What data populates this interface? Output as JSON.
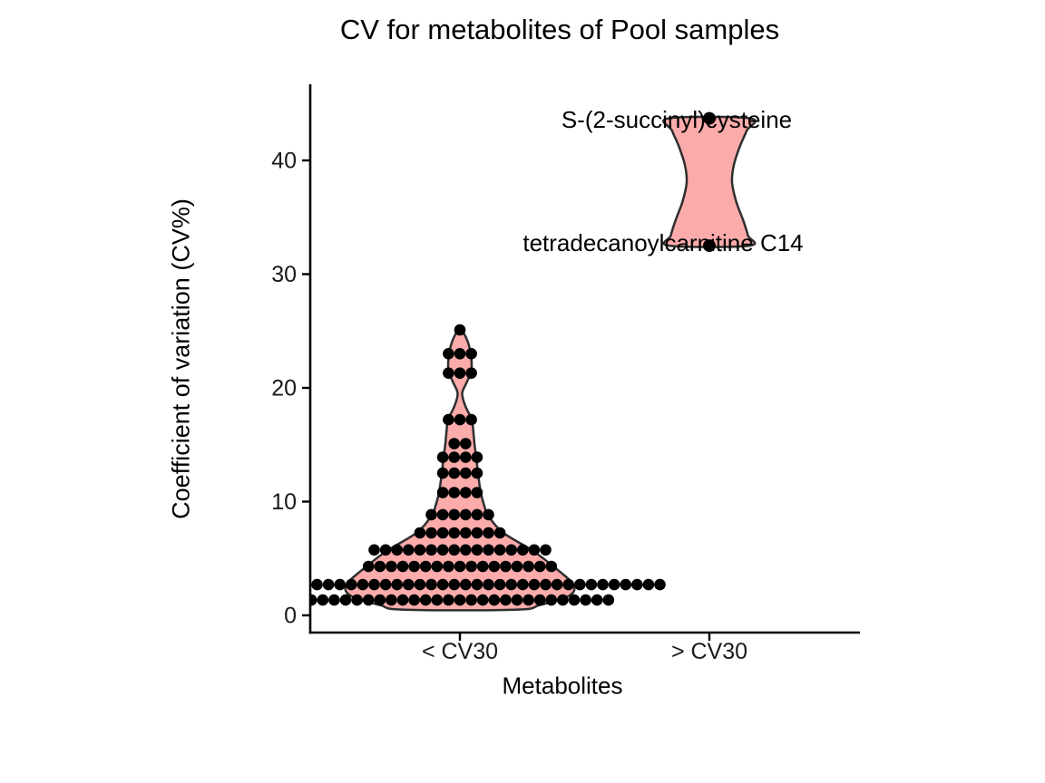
{
  "chart_data": {
    "type": "violin",
    "title": "CV for metabolites of Pool samples",
    "xlabel": "Metabolites",
    "ylabel": "Coefficient of variation (CV%)",
    "categories": [
      "< CV30",
      "> CV30"
    ],
    "yticks": [
      0,
      10,
      20,
      30,
      40
    ],
    "ylim": [
      -1.5,
      46.5
    ],
    "grid": "off",
    "legend": "none",
    "colors": {
      "background": "#FFFFFF",
      "violin_fill": "#FCABAB",
      "violin_stroke": "#2E2E2E",
      "dot": "#000000",
      "axis": "#000000",
      "tick_label": "#1A1A1A",
      "annotation_text": "#000000"
    },
    "groups": [
      {
        "category": "< CV30",
        "dot_rows": [
          {
            "cv": 25.1,
            "count": 1
          },
          {
            "cv": 23.0,
            "count": 3
          },
          {
            "cv": 21.3,
            "count": 3
          },
          {
            "cv": 17.2,
            "count": 3
          },
          {
            "cv": 15.1,
            "count": 2
          },
          {
            "cv": 13.9,
            "count": 4
          },
          {
            "cv": 12.5,
            "count": 4
          },
          {
            "cv": 10.8,
            "count": 4
          },
          {
            "cv": 8.85,
            "count": 6
          },
          {
            "cv": 7.25,
            "count": 8
          },
          {
            "cv": 5.75,
            "count": 16
          },
          {
            "cv": 4.3,
            "count": 17
          },
          {
            "cv": 2.7,
            "count": 36
          },
          {
            "cv": 1.35,
            "count": 27
          }
        ],
        "violin_outline": [
          [
            25.2,
            1
          ],
          [
            24.2,
            8
          ],
          [
            23.0,
            12
          ],
          [
            22.0,
            13
          ],
          [
            21.3,
            12
          ],
          [
            20.4,
            7
          ],
          [
            19.5,
            2.5
          ],
          [
            18.4,
            6
          ],
          [
            17.2,
            13
          ],
          [
            16.0,
            15
          ],
          [
            15.1,
            16
          ],
          [
            13.9,
            18
          ],
          [
            12.5,
            20
          ],
          [
            10.8,
            23
          ],
          [
            9.6,
            27
          ],
          [
            8.8,
            31
          ],
          [
            7.3,
            47
          ],
          [
            5.7,
            80
          ],
          [
            4.3,
            103
          ],
          [
            2.7,
            125
          ],
          [
            1.7,
            120
          ],
          [
            0.9,
            88
          ],
          [
            0.5,
            62
          ]
        ]
      },
      {
        "category": "> CV30",
        "points": [
          {
            "label": "S-(2-succinyl)cysteine",
            "cv": 43.7
          },
          {
            "label": "tetradecanoylcarnitine C14",
            "cv": 32.5
          }
        ],
        "violin_outline": [
          [
            43.7,
            45
          ],
          [
            42.6,
            41
          ],
          [
            41.2,
            33.5
          ],
          [
            39.6,
            27
          ],
          [
            38.1,
            25
          ],
          [
            36.4,
            29.5
          ],
          [
            34.8,
            37
          ],
          [
            33.4,
            42.5
          ],
          [
            32.5,
            44
          ]
        ]
      }
    ]
  }
}
